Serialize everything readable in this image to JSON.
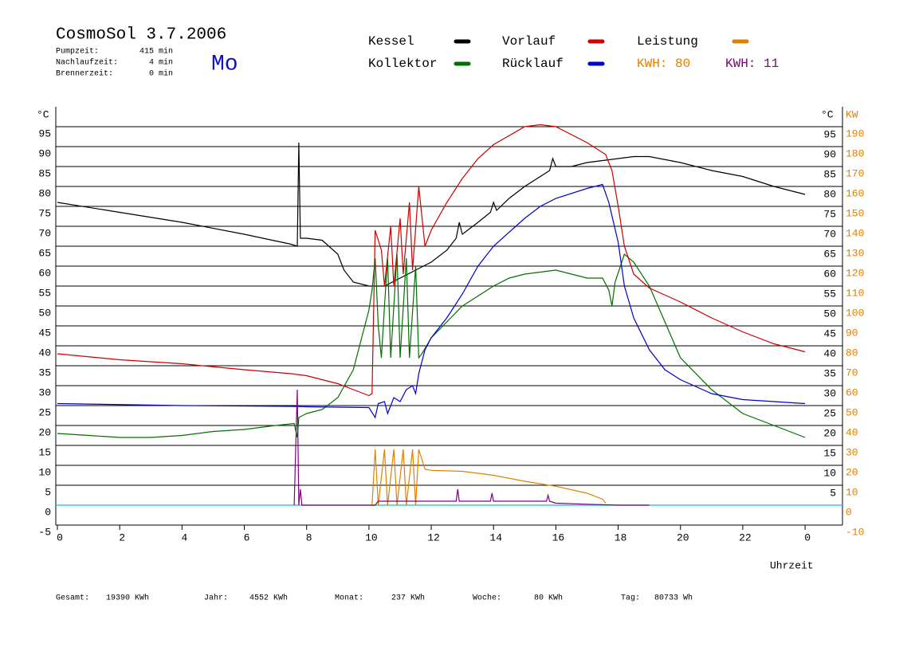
{
  "chart_data": {
    "type": "line",
    "title": "CosmoSol 3.7.2006",
    "day": "Mo",
    "stats": [
      {
        "label": "Pumpzeit:",
        "value": "415 min"
      },
      {
        "label": "Nachlaufzeit:",
        "value": "4 min"
      },
      {
        "label": "Brennerzeit:",
        "value": "0 min"
      }
    ],
    "y_unit": "°C",
    "y2_unit": "KW",
    "xlabel": "Uhrzeit",
    "xlim": [
      0,
      25.2
    ],
    "ylim": [
      -5,
      100
    ],
    "y2lim": [
      -10,
      200
    ],
    "xticks": [
      0,
      2,
      4,
      6,
      8,
      10,
      12,
      14,
      16,
      18,
      20,
      22,
      {
        "value": 24,
        "label": "0"
      }
    ],
    "yticks": [
      -5,
      0,
      5,
      10,
      15,
      20,
      25,
      30,
      35,
      40,
      45,
      50,
      55,
      60,
      65,
      70,
      75,
      80,
      85,
      90,
      95
    ],
    "yticks_right": [
      5,
      10,
      15,
      20,
      25,
      30,
      35,
      40,
      45,
      50,
      55,
      60,
      65,
      70,
      75,
      80,
      85,
      90,
      95
    ],
    "y2ticks": [
      -10,
      0,
      10,
      20,
      30,
      40,
      50,
      60,
      70,
      80,
      90,
      100,
      110,
      120,
      130,
      140,
      150,
      160,
      170,
      180,
      190
    ],
    "grid": true,
    "series": [
      {
        "name": "Kessel",
        "color": "#000000",
        "x": [
          0,
          2,
          4,
          6,
          7.5,
          7.7,
          7.75,
          7.8,
          8,
          8.5,
          9,
          9.2,
          9.5,
          10,
          10.5,
          11,
          11.5,
          12,
          12.5,
          12.8,
          12.9,
          13,
          13.5,
          13.9,
          14,
          14.1,
          14.5,
          15,
          15.5,
          15.8,
          15.9,
          16,
          16.5,
          17,
          17.5,
          18,
          18.5,
          19,
          20,
          21,
          22,
          23,
          24
        ],
        "values": [
          76,
          73.5,
          71,
          68,
          65.5,
          65,
          91,
          67,
          67,
          66.5,
          63,
          59,
          56,
          55,
          55,
          57,
          59,
          61,
          64,
          67,
          71,
          68,
          71,
          73.5,
          76,
          74,
          77,
          80,
          82.5,
          84,
          87,
          85,
          85,
          86,
          86.5,
          87,
          87.5,
          87.5,
          86,
          84,
          82.5,
          80,
          78
        ]
      },
      {
        "name": "Kollektor",
        "color": "#007000",
        "x": [
          0,
          1,
          2,
          3,
          4,
          5,
          6,
          7,
          7.6,
          7.7,
          7.75,
          8,
          8.5,
          9,
          9.5,
          10,
          10.1,
          10.2,
          10.3,
          10.4,
          10.5,
          10.6,
          10.7,
          10.9,
          11,
          11.2,
          11.3,
          11.5,
          11.6,
          11.7,
          12,
          12.5,
          13,
          14,
          14.5,
          15,
          16,
          17,
          17.5,
          17.7,
          17.8,
          17.9,
          18.2,
          18.5,
          19,
          19.5,
          20,
          21,
          22,
          23,
          24
        ],
        "values": [
          18,
          17.5,
          17,
          17,
          17.5,
          18.5,
          19,
          20,
          20.5,
          17,
          22,
          23,
          24,
          27,
          34,
          49,
          54,
          62,
          45,
          37,
          50,
          62,
          37,
          63,
          37,
          62,
          37,
          60,
          37,
          38,
          42,
          46,
          50,
          55,
          57,
          58,
          59,
          57,
          57,
          54,
          50,
          56,
          63,
          61,
          55,
          46,
          37,
          29,
          23,
          20,
          17
        ]
      },
      {
        "name": "Vorlauf",
        "color": "#cc0000",
        "x": [
          0,
          2,
          4,
          6,
          7.5,
          8,
          9,
          9.5,
          10,
          10.1,
          10.2,
          10.4,
          10.5,
          10.7,
          10.8,
          11,
          11.1,
          11.3,
          11.4,
          11.6,
          11.8,
          12,
          12.5,
          13,
          13.5,
          14,
          15,
          15.5,
          16,
          17,
          17.6,
          17.8,
          18,
          18.2,
          18.5,
          19,
          20,
          21,
          22,
          23,
          24
        ],
        "values": [
          38,
          36.5,
          35.5,
          34,
          33,
          32.5,
          30.5,
          29,
          27.5,
          28,
          69,
          64,
          55,
          70,
          55,
          72,
          58,
          76,
          59,
          80,
          65,
          69,
          76,
          82,
          87,
          90.5,
          95,
          95.5,
          95,
          91,
          88,
          84,
          75,
          65,
          58,
          54.5,
          51,
          47,
          43.5,
          40.5,
          38.5
        ]
      },
      {
        "name": "Rücklauf",
        "color": "#0000cc",
        "x": [
          0,
          4,
          7.5,
          8,
          10,
          10.2,
          10.3,
          10.5,
          10.6,
          10.8,
          11,
          11.2,
          11.4,
          11.5,
          11.6,
          11.8,
          12,
          12.5,
          13,
          13.5,
          14,
          15,
          15.5,
          16,
          17,
          17.5,
          17.7,
          18,
          18.2,
          18.5,
          19,
          19.5,
          20,
          21,
          22,
          23,
          24
        ],
        "values": [
          25.5,
          25,
          24.8,
          24.7,
          24.5,
          22,
          25.5,
          26,
          23,
          27,
          26,
          29,
          30,
          28,
          33,
          39,
          42,
          47,
          53,
          60,
          65,
          72,
          75,
          77,
          79.5,
          80.5,
          76,
          66,
          55,
          47,
          39,
          34,
          31.5,
          28,
          26.5,
          26,
          25.5
        ]
      },
      {
        "name": "Leistung",
        "kwh_label": "KWH: 80",
        "color": "#e08000",
        "axis": "y2",
        "x": [
          10.1,
          10.2,
          10.3,
          10.5,
          10.6,
          10.8,
          10.9,
          11.1,
          11.2,
          11.4,
          11.5,
          11.6,
          11.8,
          12,
          13,
          14,
          15,
          16,
          17,
          17.5,
          17.6
        ],
        "values": [
          0,
          28,
          0,
          28,
          0,
          28,
          0,
          28,
          0,
          28,
          0,
          28,
          18,
          17.5,
          17,
          15,
          12,
          9.5,
          6,
          3,
          1
        ]
      },
      {
        "kwh_label": "KWH: 11",
        "color": "#800080",
        "axis": "y2",
        "x": [
          7.6,
          7.7,
          7.75,
          7.8,
          7.85,
          10.2,
          10.3,
          11,
          12,
          12.8,
          12.85,
          12.9,
          13.9,
          13.95,
          14,
          15,
          15.7,
          15.75,
          15.8,
          16,
          17,
          18,
          19
        ],
        "values": [
          0,
          58,
          0,
          8,
          0,
          0,
          2,
          2,
          2,
          2,
          8,
          2,
          2,
          6,
          2,
          2,
          2,
          5,
          2,
          1,
          0.5,
          0,
          0
        ]
      }
    ],
    "totals": [
      {
        "label": "Gesamt:",
        "value": "19390 KWh"
      },
      {
        "label": "Jahr:",
        "value": "4552 KWh"
      },
      {
        "label": "Monat:",
        "value": "237 KWh"
      },
      {
        "label": "Woche:",
        "value": "80 KWh"
      },
      {
        "label": "Tag:",
        "value": "80733 Wh"
      }
    ]
  }
}
